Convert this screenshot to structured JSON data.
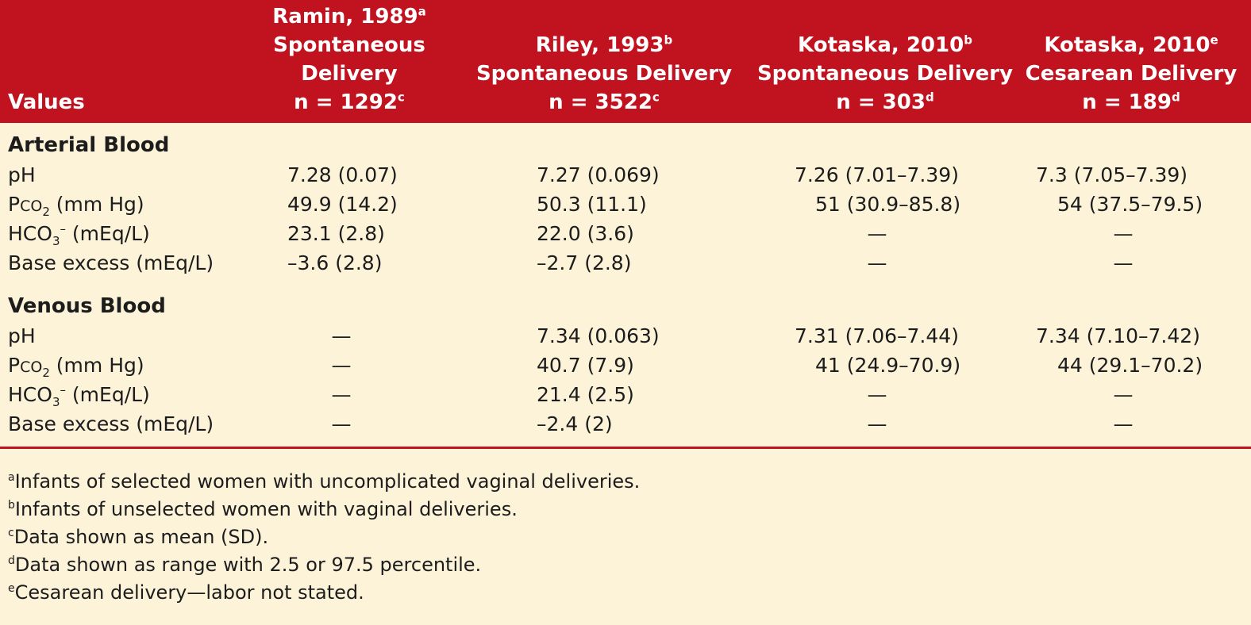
{
  "header": {
    "values": "Values",
    "columns": [
      {
        "lines": [
          "Ramin, 1989",
          "Spontaneous",
          "Delivery",
          "n = 1292"
        ],
        "sup_title": "a",
        "sup_n": "c"
      },
      {
        "lines": [
          "Riley, 1993",
          "Spontaneous Delivery",
          "n = 3522"
        ],
        "sup_title": "b",
        "sup_n": "c"
      },
      {
        "lines": [
          "Kotaska, 2010",
          "Spontaneous Delivery",
          "n = 303"
        ],
        "sup_title": "b",
        "sup_n": "d"
      },
      {
        "lines": [
          "Kotaska, 2010",
          "Cesarean Delivery",
          "n = 189"
        ],
        "sup_title": "e",
        "sup_n": "d"
      }
    ]
  },
  "sections": [
    {
      "title": "Arterial Blood",
      "rows": [
        {
          "label": "pH",
          "cells": [
            "7.28 (0.07)",
            "7.27 (0.069)",
            "7.26 (7.01–7.39)",
            "7.3 (7.05–7.39)"
          ]
        },
        {
          "label_pre": "P",
          "label_co": "CO",
          "label_sub": "2",
          "label_post": " (mm Hg)",
          "cells": [
            "49.9 (14.2)",
            "50.3 (11.1)",
            "51 (30.9–85.8)",
            "54 (37.5–79.5)"
          ]
        },
        {
          "label_pre": "HCO",
          "label_sub": "3",
          "label_sup": "–",
          "label_post": " (mEq/L)",
          "cells": [
            "23.1 (2.8)",
            "22.0 (3.6)",
            "—",
            "—"
          ]
        },
        {
          "label": "Base excess (mEq/L)",
          "cells": [
            "–3.6 (2.8)",
            "–2.7 (2.8)",
            "—",
            "—"
          ]
        }
      ]
    },
    {
      "title": "Venous Blood",
      "rows": [
        {
          "label": "pH",
          "cells": [
            "—",
            "7.34 (0.063)",
            "7.31 (7.06–7.44)",
            "7.34 (7.10–7.42)"
          ]
        },
        {
          "label_pre": "P",
          "label_co": "CO",
          "label_sub": "2",
          "label_post": " (mm Hg)",
          "cells": [
            "—",
            "40.7 (7.9)",
            "41 (24.9–70.9)",
            "44 (29.1–70.2)"
          ]
        },
        {
          "label_pre": "HCO",
          "label_sub": "3",
          "label_sup": "–",
          "label_post": " (mEq/L)",
          "cells": [
            "—",
            "21.4 (2.5)",
            "—",
            "—"
          ]
        },
        {
          "label": "Base excess (mEq/L)",
          "cells": [
            "—",
            "–2.4 (2)",
            "—",
            "—"
          ]
        }
      ]
    }
  ],
  "footnotes": [
    {
      "mark": "a",
      "text": "Infants of selected women with uncomplicated vaginal deliveries."
    },
    {
      "mark": "b",
      "text": "Infants of unselected women with vaginal deliveries."
    },
    {
      "mark": "c",
      "text": "Data shown as mean (SD)."
    },
    {
      "mark": "d",
      "text": "Data shown as range with 2.5 or 97.5 percentile."
    },
    {
      "mark": "e",
      "text": "Cesarean delivery—labor not stated."
    }
  ],
  "colors": {
    "header_bg": "#c0121f",
    "page_bg": "#fcf3d8",
    "header_text": "#ffffff"
  }
}
